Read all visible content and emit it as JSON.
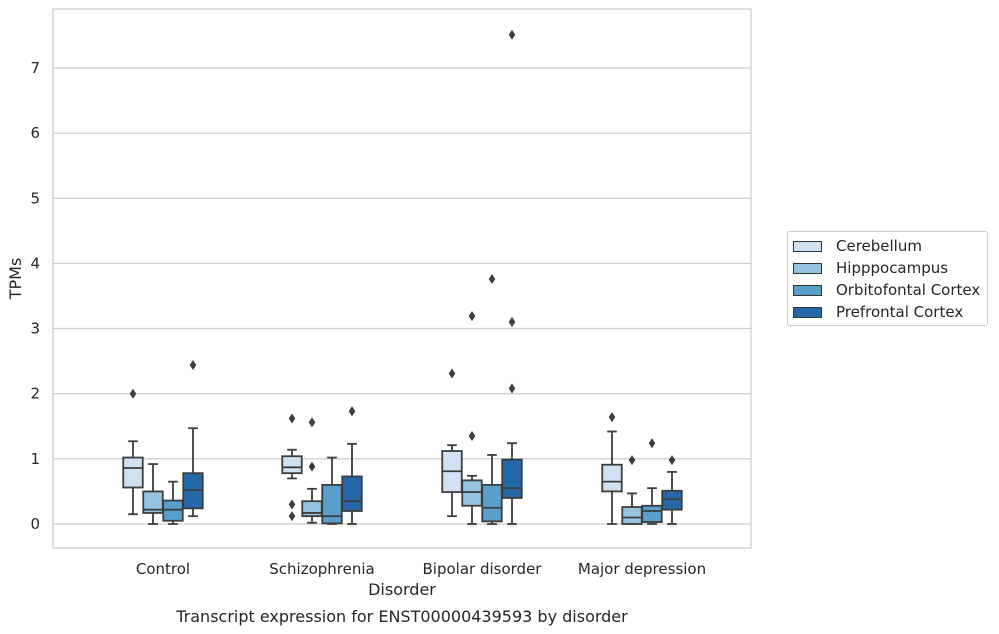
{
  "chart_data": {
    "type": "box",
    "title": "Transcript expression for ENST00000439593 by disorder",
    "xlabel": "Disorder",
    "ylabel": "TPMs",
    "ylim": [
      -0.35,
      7.9
    ],
    "yticks": [
      0,
      1,
      2,
      3,
      4,
      5,
      6,
      7
    ],
    "grid": true,
    "legend_position": "outside-right",
    "categories": [
      "Control",
      "Schizophrenia",
      "Bipolar disorder",
      "Major depression"
    ],
    "series": [
      {
        "name": "Cerebellum",
        "color": "#d0e1f2",
        "boxes": [
          {
            "whislo": 0.15,
            "q1": 0.56,
            "med": 0.86,
            "q3": 1.02,
            "whishi": 1.27,
            "fliers": [
              2.0
            ]
          },
          {
            "whislo": 0.7,
            "q1": 0.78,
            "med": 0.87,
            "q3": 1.04,
            "whishi": 1.14,
            "fliers": [
              1.62,
              0.3,
              0.12
            ]
          },
          {
            "whislo": 0.12,
            "q1": 0.49,
            "med": 0.81,
            "q3": 1.12,
            "whishi": 1.21,
            "fliers": [
              2.31
            ]
          },
          {
            "whislo": 0.0,
            "q1": 0.5,
            "med": 0.65,
            "q3": 0.91,
            "whishi": 1.42,
            "fliers": [
              1.64
            ]
          }
        ]
      },
      {
        "name": "Hipppocampus",
        "color": "#94c4df",
        "boxes": [
          {
            "whislo": 0.0,
            "q1": 0.17,
            "med": 0.22,
            "q3": 0.5,
            "whishi": 0.92,
            "fliers": []
          },
          {
            "whislo": 0.02,
            "q1": 0.12,
            "med": 0.17,
            "q3": 0.35,
            "whishi": 0.54,
            "fliers": [
              1.56,
              0.88
            ]
          },
          {
            "whislo": 0.0,
            "q1": 0.28,
            "med": 0.49,
            "q3": 0.67,
            "whishi": 0.74,
            "fliers": [
              3.19,
              1.35
            ]
          },
          {
            "whislo": 0.0,
            "q1": 0.0,
            "med": 0.1,
            "q3": 0.26,
            "whishi": 0.47,
            "fliers": [
              0.98
            ]
          }
        ]
      },
      {
        "name": "Orbitofontal Cortex",
        "color": "#5a9fcc",
        "boxes": [
          {
            "whislo": 0.0,
            "q1": 0.05,
            "med": 0.22,
            "q3": 0.36,
            "whishi": 0.65,
            "fliers": []
          },
          {
            "whislo": 0.0,
            "q1": 0.01,
            "med": 0.12,
            "q3": 0.6,
            "whishi": 1.02,
            "fliers": []
          },
          {
            "whislo": 0.0,
            "q1": 0.04,
            "med": 0.25,
            "q3": 0.6,
            "whishi": 1.06,
            "fliers": [
              3.76
            ]
          },
          {
            "whislo": 0.0,
            "q1": 0.03,
            "med": 0.2,
            "q3": 0.28,
            "whishi": 0.55,
            "fliers": [
              1.24
            ]
          }
        ]
      },
      {
        "name": "Prefrontal Cortex",
        "color": "#2468a9",
        "boxes": [
          {
            "whislo": 0.12,
            "q1": 0.24,
            "med": 0.52,
            "q3": 0.78,
            "whishi": 1.47,
            "fliers": [
              2.44
            ]
          },
          {
            "whislo": 0.0,
            "q1": 0.2,
            "med": 0.35,
            "q3": 0.73,
            "whishi": 1.23,
            "fliers": [
              1.73
            ]
          },
          {
            "whislo": 0.0,
            "q1": 0.4,
            "med": 0.55,
            "q3": 0.99,
            "whishi": 1.24,
            "fliers": [
              7.51,
              3.1,
              2.08
            ]
          },
          {
            "whislo": 0.0,
            "q1": 0.22,
            "med": 0.38,
            "q3": 0.51,
            "whishi": 0.8,
            "fliers": [
              0.98
            ]
          }
        ]
      }
    ]
  }
}
